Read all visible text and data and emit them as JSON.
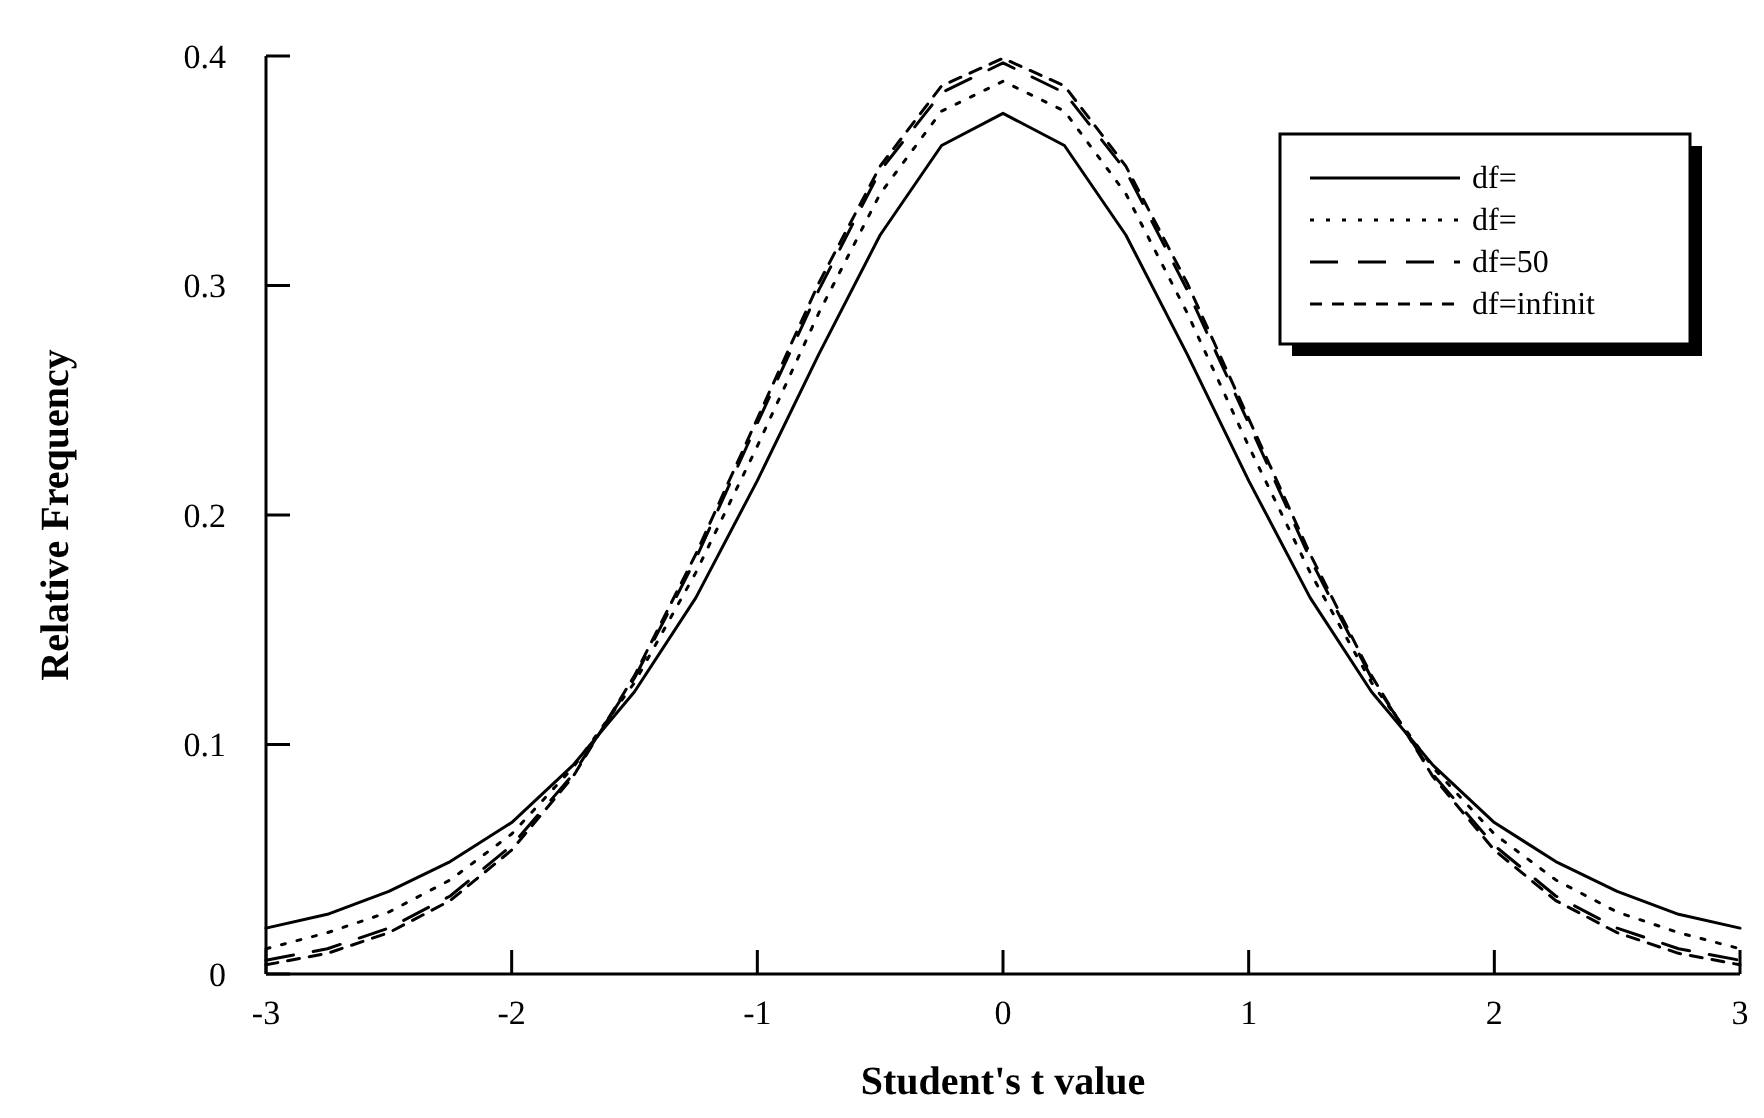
{
  "chart_data": {
    "type": "line",
    "xlabel": "Student's t value",
    "ylabel": "Relative Frequency",
    "x": [
      -3,
      -2.75,
      -2.5,
      -2.25,
      -2,
      -1.75,
      -1.5,
      -1.25,
      -1,
      -0.75,
      -0.5,
      -0.25,
      0,
      0.25,
      0.5,
      0.75,
      1,
      1.25,
      1.5,
      1.75,
      2,
      2.25,
      2.5,
      2.75,
      3
    ],
    "series": [
      {
        "name": "df=",
        "color": "#000000",
        "line_style": "solid",
        "values": [
          0.02,
          0.026,
          0.036,
          0.049,
          0.066,
          0.091,
          0.123,
          0.164,
          0.215,
          0.27,
          0.322,
          0.361,
          0.375,
          0.361,
          0.322,
          0.27,
          0.215,
          0.164,
          0.123,
          0.091,
          0.066,
          0.049,
          0.036,
          0.026,
          0.02
        ]
      },
      {
        "name": "df=",
        "color": "#000000",
        "line_style": "dotted",
        "values": [
          0.011,
          0.018,
          0.027,
          0.041,
          0.061,
          0.09,
          0.127,
          0.175,
          0.23,
          0.288,
          0.34,
          0.376,
          0.389,
          0.376,
          0.34,
          0.288,
          0.23,
          0.175,
          0.127,
          0.09,
          0.061,
          0.041,
          0.027,
          0.018,
          0.011
        ]
      },
      {
        "name": "df=50",
        "color": "#000000",
        "line_style": "dashed",
        "values": [
          0.006,
          0.011,
          0.02,
          0.034,
          0.056,
          0.087,
          0.129,
          0.181,
          0.24,
          0.298,
          0.35,
          0.384,
          0.397,
          0.384,
          0.35,
          0.298,
          0.24,
          0.181,
          0.129,
          0.087,
          0.056,
          0.034,
          0.02,
          0.011,
          0.006
        ]
      },
      {
        "name": "df=infinit",
        "color": "#000000",
        "line_style": "dashed",
        "values": [
          0.004,
          0.009,
          0.018,
          0.032,
          0.054,
          0.086,
          0.13,
          0.183,
          0.242,
          0.301,
          0.352,
          0.387,
          0.399,
          0.387,
          0.352,
          0.301,
          0.242,
          0.183,
          0.13,
          0.086,
          0.054,
          0.032,
          0.018,
          0.009,
          0.004
        ]
      }
    ],
    "xlim": [
      -3,
      3
    ],
    "xticks": [
      -3,
      -2,
      -1,
      0,
      1,
      2,
      3
    ],
    "ylim": [
      0,
      0.4
    ],
    "yticks": [
      0,
      0.1,
      0.2,
      0.3,
      0.4
    ],
    "grid": false,
    "legend": "top right",
    "marker": "none"
  }
}
